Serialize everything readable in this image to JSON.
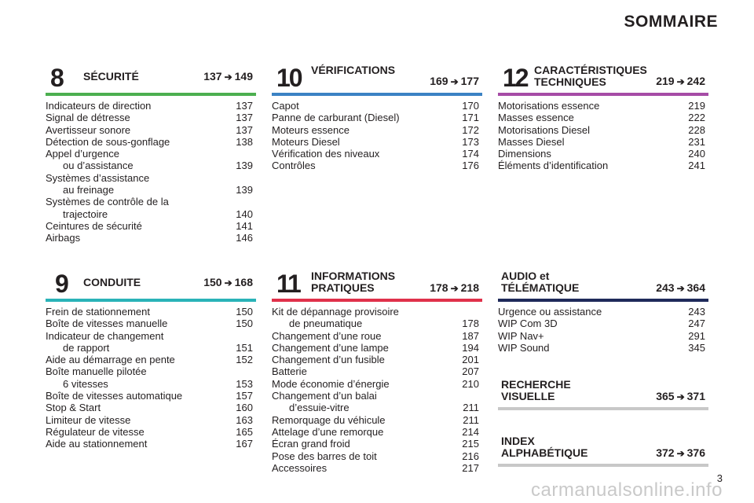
{
  "header": {
    "title": "SOMMAIRE"
  },
  "sections": [
    {
      "number": "8",
      "title": "SÉCURITÉ",
      "range_start": "137",
      "range_end": "149",
      "bar_color": "#4caf50",
      "entries": [
        {
          "label": "Indicateurs de direction",
          "page": "137"
        },
        {
          "label": "Signal de détresse",
          "page": "137"
        },
        {
          "label": "Avertisseur sonore",
          "page": "137"
        },
        {
          "label": "Détection de sous-gonflage",
          "page": "138"
        },
        {
          "label": "Appel d’urgence",
          "label2": "ou d’assistance",
          "page": "139"
        },
        {
          "label": "Systèmes d’assistance",
          "label2": "au freinage",
          "page": "139"
        },
        {
          "label": "Systèmes de contrôle de la",
          "label2": "trajectoire",
          "page": "140"
        },
        {
          "label": "Ceintures de sécurité",
          "page": "141"
        },
        {
          "label": "Airbags",
          "page": "146"
        }
      ]
    },
    {
      "number": "10",
      "title": "VÉRIFICATIONS",
      "range_start": "169",
      "range_end": "177",
      "bar_color": "#3b82c4",
      "entries": [
        {
          "label": "Capot",
          "page": "170"
        },
        {
          "label": "Panne de carburant (Diesel)",
          "page": "171"
        },
        {
          "label": "Moteurs essence",
          "page": "172"
        },
        {
          "label": "Moteurs Diesel",
          "page": "173"
        },
        {
          "label": "Vérification des niveaux",
          "page": "174"
        },
        {
          "label": "Contrôles",
          "page": "176"
        }
      ]
    },
    {
      "number": "12",
      "title": "CARACTÉRISTIQUES",
      "title2": "TECHNIQUES",
      "range_start": "219",
      "range_end": "242",
      "bar_color": "#a64ca6",
      "entries": [
        {
          "label": "Motorisations essence",
          "page": "219"
        },
        {
          "label": "Masses essence",
          "page": "222"
        },
        {
          "label": "Motorisations Diesel",
          "page": "228"
        },
        {
          "label": "Masses Diesel",
          "page": "231"
        },
        {
          "label": "Dimensions",
          "page": "240"
        },
        {
          "label": "Éléments d’identification",
          "page": "241"
        }
      ]
    },
    {
      "number": "9",
      "title": "CONDUITE",
      "range_start": "150",
      "range_end": "168",
      "bar_color": "#2ab3b8",
      "entries": [
        {
          "label": "Frein de stationnement",
          "page": "150"
        },
        {
          "label": "Boîte de vitesses manuelle",
          "page": "150"
        },
        {
          "label": "Indicateur de changement",
          "label2": "de rapport",
          "page": "151"
        },
        {
          "label": "Aide au démarrage en pente",
          "page": "152"
        },
        {
          "label": "Boîte manuelle pilotée",
          "label2": "6 vitesses",
          "page": "153"
        },
        {
          "label": "Boîte de vitesses automatique",
          "page": "157"
        },
        {
          "label": "Stop & Start",
          "page": "160"
        },
        {
          "label": "Limiteur de vitesse",
          "page": "163"
        },
        {
          "label": "Régulateur de vitesse",
          "page": "165"
        },
        {
          "label": "Aide au stationnement",
          "page": "167"
        }
      ]
    },
    {
      "number": "11",
      "title": "INFORMATIONS",
      "title2": "PRATIQUES",
      "range_start": "178",
      "range_end": "218",
      "bar_color": "#e0314b",
      "entries": [
        {
          "label": "Kit de dépannage provisoire",
          "label2": "de pneumatique",
          "page": "178"
        },
        {
          "label": "Changement d’une roue",
          "page": "187"
        },
        {
          "label": "Changement d’une lampe",
          "page": "194"
        },
        {
          "label": "Changement d’un fusible",
          "page": "201"
        },
        {
          "label": "Batterie",
          "page": "207"
        },
        {
          "label": "Mode économie d’énergie",
          "page": "210"
        },
        {
          "label": "Changement d’un balai",
          "label2": "d’essuie-vitre",
          "page": "211"
        },
        {
          "label": "Remorquage du véhicule",
          "page": "211"
        },
        {
          "label": "Attelage d’une remorque",
          "page": "214"
        },
        {
          "label": "Écran grand froid",
          "page": "215"
        },
        {
          "label": "Pose des barres de toit",
          "page": "216"
        },
        {
          "label": "Accessoires",
          "page": "217"
        }
      ]
    },
    {
      "number": "",
      "title": "AUDIO et",
      "title2": "TÉLÉMATIQUE",
      "range_start": "243",
      "range_end": "364",
      "bar_color": "#1f2a5a",
      "entries": [
        {
          "label": "Urgence ou assistance",
          "page": "243"
        },
        {
          "label": "WIP Com 3D",
          "page": "247"
        },
        {
          "label": "WIP Nav+",
          "page": "291"
        },
        {
          "label": "WIP Sound",
          "page": "345"
        }
      ]
    },
    {
      "number": "",
      "title": "RECHERCHE",
      "title2": "VISUELLE",
      "range_start": "365",
      "range_end": "371",
      "bar_color": "#c8c8c8",
      "entries": []
    },
    {
      "number": "",
      "title": "INDEX",
      "title2": "ALPHABÉTIQUE",
      "range_start": "372",
      "range_end": "376",
      "bar_color": "#c8c8c8",
      "entries": []
    }
  ],
  "footer": {
    "page_number": "3",
    "watermark": "carmanualsonline.info"
  },
  "icons": {
    "arrow": "arrow-right-icon"
  }
}
